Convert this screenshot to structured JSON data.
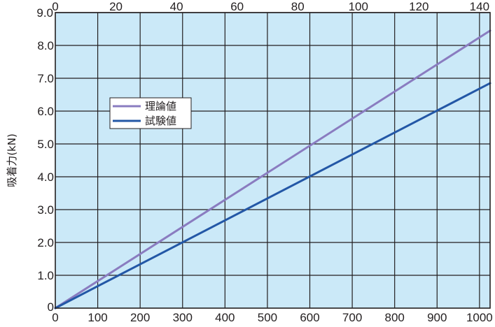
{
  "chart_data": {
    "type": "line",
    "ylabel": "吸着力(kN)",
    "x_bottom": {
      "range": [
        0,
        1025
      ],
      "ticks": [
        0,
        100,
        200,
        300,
        400,
        500,
        600,
        700,
        800,
        900,
        1000
      ],
      "tick_labels": [
        "0",
        "100",
        "200",
        "300",
        "400",
        "500",
        "600",
        "700",
        "800",
        "900",
        "1000"
      ]
    },
    "x_top": {
      "range": [
        0,
        143.5
      ],
      "ticks": [
        0,
        20,
        40,
        60,
        80,
        100,
        120,
        140
      ],
      "tick_labels": [
        "0",
        "20",
        "40",
        "60",
        "80",
        "100",
        "120",
        "140"
      ]
    },
    "y": {
      "range": [
        0,
        9.0
      ],
      "ticks": [
        0,
        1,
        2,
        3,
        4,
        5,
        6,
        7,
        8,
        9
      ],
      "tick_labels": [
        "0",
        "1.0",
        "2.0",
        "3.0",
        "4.0",
        "5.0",
        "6.0",
        "7.0",
        "8.0",
        "9.0"
      ]
    },
    "series": [
      {
        "name": "理論値",
        "color": "#8a7cc0",
        "x": [
          0,
          1025
        ],
        "y": [
          0,
          8.45
        ]
      },
      {
        "name": "試験値",
        "color": "#2357a6",
        "x": [
          0,
          1025
        ],
        "y": [
          0,
          6.85
        ]
      }
    ],
    "grid": true,
    "legend_position": "upper-left",
    "colors": {
      "plot_background": "#cbe9f8",
      "grid": "#231f20",
      "frame": "#231f20"
    }
  }
}
